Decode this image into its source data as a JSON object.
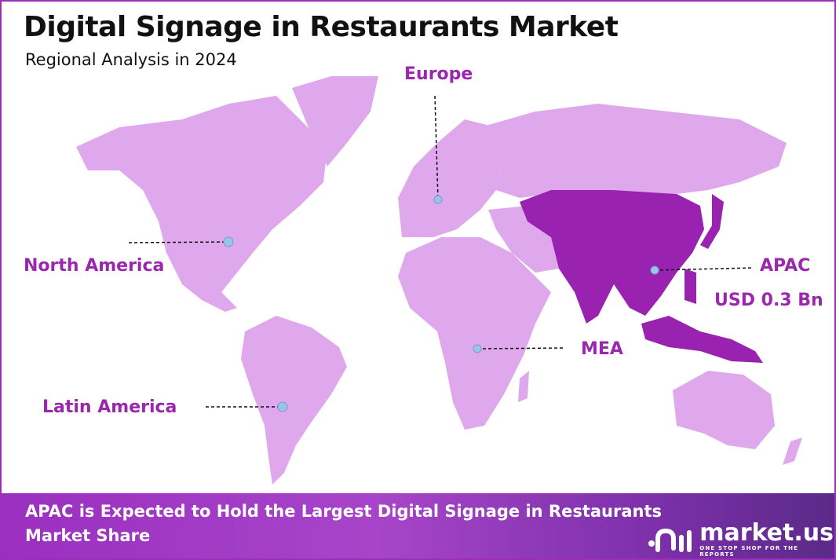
{
  "header": {
    "title": "Digital Signage in Restaurants Market",
    "subtitle": "Regional Analysis in 2024"
  },
  "regions": [
    {
      "name": "North America",
      "highlighted": false
    },
    {
      "name": "Europe",
      "highlighted": false
    },
    {
      "name": "APAC",
      "highlighted": true,
      "value": "USD 0.3 Bn"
    },
    {
      "name": "MEA",
      "highlighted": false
    },
    {
      "name": "Latin America",
      "highlighted": false
    }
  ],
  "colors": {
    "border": "#9b2fb5",
    "land": "#e0a8ec",
    "highlight": "#9a22b0",
    "label": "#9b27af",
    "marker": "#9ec3ea"
  },
  "footer": {
    "headline": "APAC is Expected to Hold the Largest Digital Signage in Restaurants Market Share",
    "logo_name": "market.us",
    "logo_tagline": "ONE STOP SHOP FOR THE REPORTS"
  }
}
